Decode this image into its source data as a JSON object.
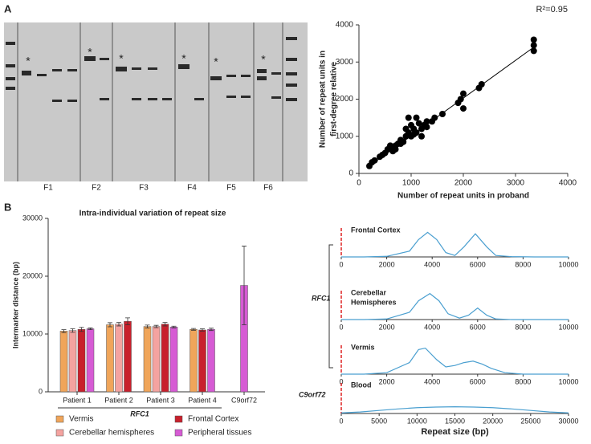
{
  "panels": [
    "A",
    "B"
  ],
  "gel": {
    "lanes": [
      "F1",
      "F2",
      "F3",
      "F4",
      "F5",
      "F6"
    ],
    "markers": [
      "*",
      "*",
      "*",
      "*",
      "*",
      "*"
    ]
  },
  "density_groups": [
    "RFC1",
    "C9orf72"
  ],
  "chart_data": [
    {
      "type": "scatter",
      "annotation": "R²=0.95",
      "xlabel": "Number of repeat units in proband",
      "ylabel": [
        "Number of repeat units in",
        "first-degree relative"
      ],
      "x": [
        200,
        250,
        300,
        400,
        450,
        500,
        550,
        600,
        650,
        650,
        700,
        700,
        750,
        800,
        800,
        850,
        900,
        900,
        950,
        950,
        1000,
        1000,
        1050,
        1050,
        1100,
        1100,
        1150,
        1200,
        1200,
        1250,
        1300,
        1300,
        1400,
        1450,
        1600,
        1900,
        1950,
        2000,
        2000,
        2300,
        2350,
        3350,
        3350,
        3350
      ],
      "values": [
        200,
        300,
        350,
        450,
        500,
        550,
        650,
        750,
        600,
        700,
        750,
        650,
        800,
        800,
        900,
        850,
        1000,
        1200,
        1100,
        1500,
        1000,
        1300,
        1050,
        1200,
        1500,
        1100,
        1350,
        1200,
        1000,
        1300,
        1400,
        1250,
        1400,
        1500,
        1600,
        1900,
        2000,
        2150,
        1750,
        2300,
        2400,
        3300,
        3450,
        3600
      ],
      "color": "#000000",
      "trendline": {
        "x": [
          200,
          3350
        ],
        "y": [
          200,
          3400
        ]
      },
      "xlim": [
        0,
        4000
      ],
      "xticks": [
        0,
        1000,
        2000,
        3000,
        4000
      ],
      "ylim": [
        0,
        4000
      ],
      "yticks": [
        0,
        1000,
        2000,
        3000,
        4000
      ]
    },
    {
      "type": "bar",
      "title": "Intra-individual variation of repeat size",
      "ylabel": "Intermarker distance (bp)",
      "group_label": "RFC1",
      "categories": [
        "Patient 1",
        "Patient 2",
        "Patient 3",
        "Patient 4",
        "C9orf72"
      ],
      "series": [
        {
          "name": "Vermis",
          "color": "#f0a55a",
          "values": [
            10500,
            11600,
            11300,
            10800,
            null
          ],
          "errors": [
            250,
            350,
            250,
            150,
            null
          ]
        },
        {
          "name": "Cerebellar hemispheres",
          "color": "#f4a3a0",
          "values": [
            10600,
            11700,
            11300,
            null,
            null
          ],
          "errors": [
            300,
            300,
            200,
            null,
            null
          ]
        },
        {
          "name": "Frontal Cortex",
          "color": "#c8202c",
          "values": [
            10800,
            12200,
            11700,
            10700,
            null
          ],
          "errors": [
            350,
            600,
            300,
            200,
            null
          ]
        },
        {
          "name": "Peripheral tissues",
          "color": "#d65bd4",
          "values": [
            10900,
            null,
            11200,
            10800,
            18400
          ],
          "errors": [
            150,
            null,
            150,
            200,
            6800
          ]
        }
      ],
      "ylim": [
        0,
        30000
      ],
      "yticks": [
        0,
        10000,
        20000,
        30000
      ]
    },
    {
      "type": "line",
      "label": [
        "Frontal Cortex"
      ],
      "reference_x": 0,
      "x": [
        0,
        1000,
        2000,
        3000,
        3400,
        3800,
        4200,
        4600,
        5000,
        5400,
        5900,
        6400,
        6800,
        7500,
        8500,
        10000
      ],
      "series": [
        {
          "color": "#4a9fd0",
          "values": [
            0,
            0,
            0.02,
            0.2,
            0.6,
            0.85,
            0.6,
            0.15,
            0.05,
            0.35,
            0.8,
            0.35,
            0.05,
            0.01,
            0,
            0
          ]
        }
      ],
      "xlim": [
        0,
        10000
      ],
      "xticks": [
        0,
        2000,
        4000,
        6000,
        8000,
        10000
      ]
    },
    {
      "type": "line",
      "label": [
        "Cerebellar",
        "Hemispheres"
      ],
      "reference_x": 0,
      "x": [
        0,
        1000,
        2000,
        3000,
        3400,
        3900,
        4300,
        4700,
        5200,
        5600,
        6000,
        6400,
        6800,
        7500,
        8500,
        10000
      ],
      "series": [
        {
          "color": "#4a9fd0",
          "values": [
            0,
            0,
            0.02,
            0.25,
            0.65,
            0.9,
            0.65,
            0.2,
            0.05,
            0.15,
            0.4,
            0.15,
            0.02,
            0,
            0,
            0
          ]
        }
      ],
      "xlim": [
        0,
        10000
      ],
      "xticks": [
        0,
        2000,
        4000,
        6000,
        8000,
        10000
      ]
    },
    {
      "type": "line",
      "label": [
        "Vermis"
      ],
      "reference_x": 0,
      "x": [
        0,
        1000,
        2000,
        3000,
        3400,
        3700,
        4200,
        4600,
        5000,
        5400,
        5800,
        6200,
        6600,
        7200,
        8000,
        10000
      ],
      "series": [
        {
          "color": "#4a9fd0",
          "values": [
            0,
            0,
            0.05,
            0.4,
            0.85,
            0.9,
            0.5,
            0.25,
            0.3,
            0.4,
            0.45,
            0.35,
            0.2,
            0.05,
            0,
            0
          ]
        }
      ],
      "xlim": [
        0,
        10000
      ],
      "xticks": [
        0,
        2000,
        4000,
        6000,
        8000,
        10000
      ]
    },
    {
      "type": "line",
      "label": [
        "Blood"
      ],
      "reference_x": 0,
      "xlabel": "Repeat size (bp)",
      "x": [
        0,
        2500,
        5000,
        7500,
        10000,
        12500,
        15000,
        17500,
        20000,
        22500,
        25000,
        27500,
        30000
      ],
      "series": [
        {
          "color": "#4a9fd0",
          "values": [
            0.02,
            0.05,
            0.1,
            0.15,
            0.19,
            0.21,
            0.22,
            0.21,
            0.19,
            0.15,
            0.1,
            0.05,
            0.02
          ]
        }
      ],
      "xlim": [
        0,
        30000
      ],
      "xticks": [
        0,
        5000,
        10000,
        15000,
        20000,
        25000,
        30000
      ]
    }
  ]
}
